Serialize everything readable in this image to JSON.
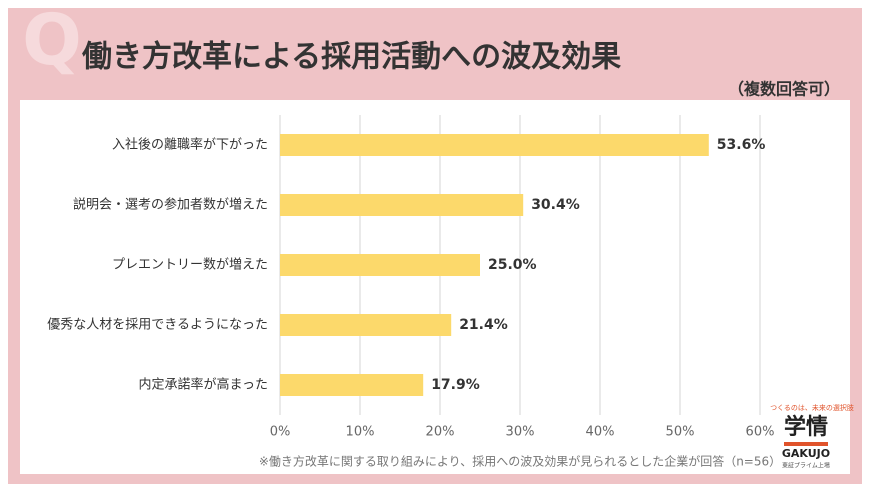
{
  "q_mark": "Q",
  "chart_data": {
    "type": "hbar",
    "title": "働き方改革による採用活動への波及効果",
    "subtitle": "（複数回答可）",
    "categories": [
      "入社後の離職率が下がった",
      "説明会・選考の参加者数が増えた",
      "プレエントリー数が増えた",
      "優秀な人材を採用できるようになった",
      "内定承諾率が高まった"
    ],
    "values": [
      53.6,
      30.4,
      25.0,
      21.4,
      17.9
    ],
    "value_labels": [
      "53.6%",
      "30.4%",
      "25.0%",
      "21.4%",
      "17.9%"
    ],
    "color": "#fcd96b",
    "xlim": [
      0,
      60
    ],
    "xticks": [
      {
        "value": 0,
        "label": "0%"
      },
      {
        "value": 10,
        "label": "10%"
      },
      {
        "value": 20,
        "label": "20%"
      },
      {
        "value": 30,
        "label": "30%"
      },
      {
        "value": 40,
        "label": "40%"
      },
      {
        "value": 50,
        "label": "50%"
      },
      {
        "value": 60,
        "label": "60%"
      }
    ],
    "grid": true,
    "footnote": "※働き方改革に関する取り組みにより、採用への波及効果が見られるとした企業が回答（n=56）"
  },
  "logo": {
    "tagline": "つくるのは、未来の選択肢",
    "name": "学情",
    "romaji": "GAKUJO",
    "note": "東証プライム上場"
  }
}
